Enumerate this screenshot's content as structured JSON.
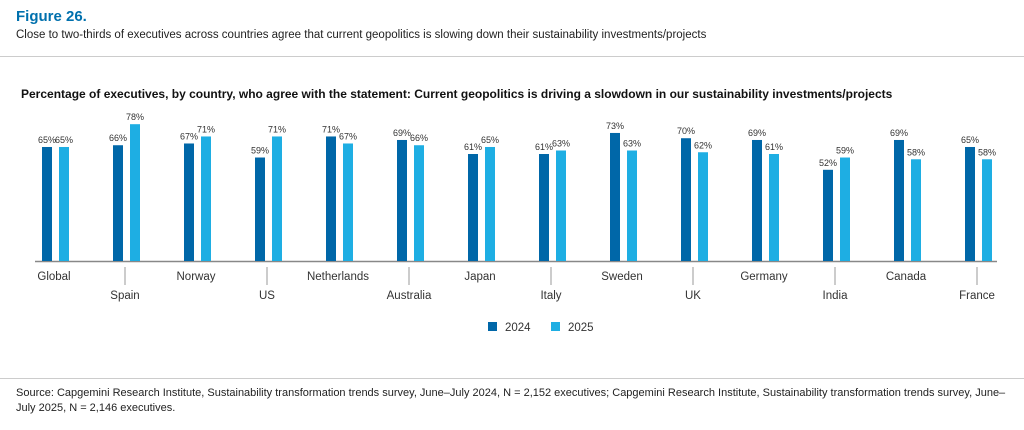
{
  "figure_label": "Figure 26.",
  "subtitle": "Close to two-thirds of executives across countries agree that current geopolitics is slowing down their sustainability investments/projects",
  "footer": "Source: Capgemini Research Institute, Sustainability transformation trends survey, June–July 2024, N = 2,152 executives; Capgemini Research Institute, Sustainability transformation trends survey, June–July 2025, N = 2,146 executives.",
  "chart_data": {
    "type": "bar",
    "title": "Percentage of executives, by country, who agree with the statement: Current geopolitics is driving a slowdown in our sustainability investments/projects",
    "categories": [
      "Global",
      "Spain",
      "Norway",
      "US",
      "Netherlands",
      "Australia",
      "Japan",
      "Italy",
      "Sweden",
      "UK",
      "Germany",
      "India",
      "Canada",
      "France"
    ],
    "series": [
      {
        "name": "2024",
        "color": "#0067A8",
        "values": [
          65,
          66,
          67,
          59,
          71,
          69,
          61,
          61,
          73,
          70,
          69,
          52,
          69,
          65
        ]
      },
      {
        "name": "2025",
        "color": "#1EAEE3",
        "values": [
          65,
          78,
          71,
          71,
          67,
          66,
          65,
          63,
          63,
          62,
          61,
          59,
          58,
          58
        ]
      }
    ],
    "value_suffix": "%",
    "ylim": [
      0,
      100
    ],
    "grid": false,
    "legend_position": "bottom"
  }
}
